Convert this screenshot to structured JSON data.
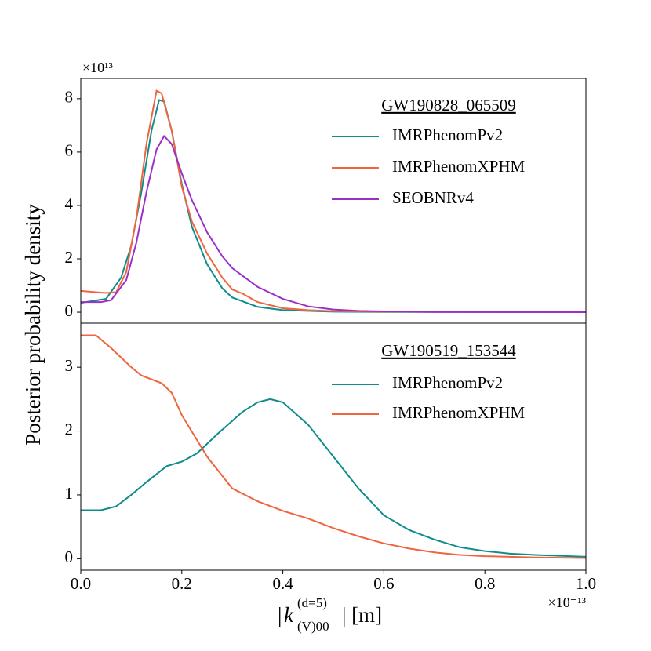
{
  "chart_data": [
    {
      "type": "line",
      "ylabel": "Posterior probability density",
      "y_offset_label": "×10¹³",
      "legend_title": "GW190828_065509",
      "legend": "upper right",
      "xlim": [
        0,
        1
      ],
      "ylim": [
        -0.41,
        8.76
      ],
      "yticks": [
        0,
        2,
        4,
        6,
        8
      ],
      "series": [
        {
          "name": "IMRPhenomPv2",
          "color": "#0f8c8c",
          "x": [
            0,
            0.05,
            0.08,
            0.1,
            0.12,
            0.14,
            0.155,
            0.165,
            0.18,
            0.2,
            0.22,
            0.25,
            0.28,
            0.3,
            0.35,
            0.4,
            0.5,
            0.6,
            1.0
          ],
          "values": [
            0.35,
            0.5,
            1.3,
            2.5,
            4.5,
            6.8,
            7.95,
            7.9,
            6.8,
            4.8,
            3.2,
            1.8,
            0.9,
            0.55,
            0.2,
            0.08,
            0.02,
            0.01,
            0
          ]
        },
        {
          "name": "IMRPhenomXPHM",
          "color": "#f0643f",
          "x": [
            0,
            0.05,
            0.07,
            0.09,
            0.11,
            0.13,
            0.15,
            0.16,
            0.18,
            0.2,
            0.22,
            0.25,
            0.28,
            0.3,
            0.32,
            0.35,
            0.4,
            0.45,
            0.5,
            0.6,
            1.0
          ],
          "values": [
            0.8,
            0.72,
            0.75,
            1.5,
            3.5,
            6.3,
            8.3,
            8.2,
            6.8,
            4.7,
            3.4,
            2.2,
            1.3,
            0.85,
            0.7,
            0.38,
            0.15,
            0.08,
            0.04,
            0.02,
            0
          ]
        },
        {
          "name": "SEOBNRv4",
          "color": "#9b30c8",
          "x": [
            0,
            0.04,
            0.06,
            0.09,
            0.11,
            0.13,
            0.15,
            0.165,
            0.18,
            0.2,
            0.22,
            0.25,
            0.28,
            0.3,
            0.35,
            0.4,
            0.45,
            0.5,
            0.55,
            0.6,
            0.7,
            1.0
          ],
          "values": [
            0.38,
            0.38,
            0.45,
            1.2,
            2.6,
            4.5,
            6.1,
            6.6,
            6.3,
            5.2,
            4.2,
            3.0,
            2.1,
            1.65,
            0.95,
            0.5,
            0.22,
            0.1,
            0.05,
            0.03,
            0.01,
            0
          ]
        }
      ]
    },
    {
      "type": "line",
      "xlabel": {
        "open": "|",
        "var": "k",
        "sup": "(d=5)",
        "sub": "(V)00",
        "close": "| [m]"
      },
      "x_offset_label": "×10⁻¹³",
      "legend_title": "GW190519_153544",
      "legend": "upper right",
      "xlim": [
        0,
        1
      ],
      "ylim": [
        -0.18,
        3.69
      ],
      "xticks": [
        {
          "value": 0,
          "label": "0.0"
        },
        0.2,
        0.4,
        0.6,
        0.8,
        {
          "value": 1,
          "label": "1.0"
        }
      ],
      "yticks": [
        0,
        1,
        2,
        3
      ],
      "series": [
        {
          "name": "IMRPhenomPv2",
          "color": "#0f8c8c",
          "x": [
            0,
            0.04,
            0.07,
            0.1,
            0.13,
            0.17,
            0.2,
            0.23,
            0.27,
            0.32,
            0.35,
            0.375,
            0.4,
            0.45,
            0.5,
            0.55,
            0.6,
            0.65,
            0.7,
            0.75,
            0.8,
            0.85,
            0.9,
            1.0
          ],
          "values": [
            0.76,
            0.76,
            0.82,
            1.0,
            1.2,
            1.45,
            1.52,
            1.65,
            1.95,
            2.3,
            2.45,
            2.5,
            2.45,
            2.1,
            1.6,
            1.1,
            0.68,
            0.45,
            0.3,
            0.18,
            0.12,
            0.08,
            0.06,
            0.03
          ]
        },
        {
          "name": "IMRPhenomXPHM",
          "color": "#f0643f",
          "x": [
            0,
            0.03,
            0.06,
            0.1,
            0.12,
            0.16,
            0.18,
            0.2,
            0.25,
            0.3,
            0.35,
            0.4,
            0.45,
            0.5,
            0.55,
            0.6,
            0.65,
            0.7,
            0.75,
            0.8,
            0.9,
            1.0
          ],
          "values": [
            3.5,
            3.5,
            3.3,
            3.0,
            2.87,
            2.75,
            2.6,
            2.25,
            1.6,
            1.1,
            0.9,
            0.75,
            0.63,
            0.48,
            0.35,
            0.24,
            0.16,
            0.1,
            0.06,
            0.04,
            0.02,
            0.01
          ]
        }
      ]
    }
  ]
}
